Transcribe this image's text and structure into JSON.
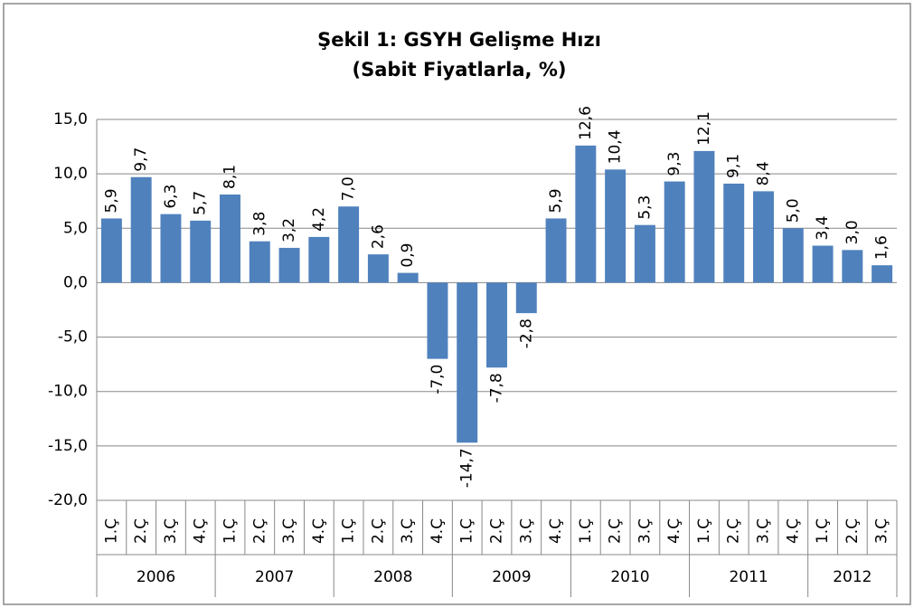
{
  "chart_data": {
    "type": "bar",
    "title": "Şekil 1: GSYH Gelişme Hızı",
    "subtitle": "(Sabit Fiyatlarla, %)",
    "groups": [
      {
        "name": "2006",
        "categories": [
          "1.Ç",
          "2.Ç",
          "3.Ç",
          "4.Ç"
        ]
      },
      {
        "name": "2007",
        "categories": [
          "1.Ç",
          "2.Ç",
          "3.Ç",
          "4.Ç"
        ]
      },
      {
        "name": "2008",
        "categories": [
          "1.Ç",
          "2.Ç",
          "3.Ç",
          "4.Ç"
        ]
      },
      {
        "name": "2009",
        "categories": [
          "1.Ç",
          "2.Ç",
          "3.Ç",
          "4.Ç"
        ]
      },
      {
        "name": "2010",
        "categories": [
          "1.Ç",
          "2.Ç",
          "3.Ç",
          "4.Ç"
        ]
      },
      {
        "name": "2011",
        "categories": [
          "1.Ç",
          "2.Ç",
          "3.Ç",
          "4.Ç"
        ]
      },
      {
        "name": "2012",
        "categories": [
          "1.Ç",
          "2.Ç",
          "3.Ç"
        ]
      }
    ],
    "values": [
      5.9,
      9.7,
      6.3,
      5.7,
      8.1,
      3.8,
      3.2,
      4.2,
      7.0,
      2.6,
      0.9,
      -7.0,
      -14.7,
      -7.8,
      -2.8,
      5.9,
      12.6,
      10.4,
      5.3,
      9.3,
      12.1,
      9.1,
      8.4,
      5.0,
      3.4,
      3.0,
      1.6
    ],
    "value_labels": [
      "5,9",
      "9,7",
      "6,3",
      "5,7",
      "8,1",
      "3,8",
      "3,2",
      "4,2",
      "7,0",
      "2,6",
      "0,9",
      "-7,0",
      "-14,7",
      "-7,8",
      "-2,8",
      "5,9",
      "12,6",
      "10,4",
      "5,3",
      "9,3",
      "12,1",
      "9,1",
      "8,4",
      "5,0",
      "3,4",
      "3,0",
      "1,6"
    ],
    "color": "#4f81bd",
    "ylim": [
      -20,
      15
    ],
    "yticks": [
      {
        "value": -20,
        "label": "-20,0"
      },
      {
        "value": -15,
        "label": "-15,0"
      },
      {
        "value": -10,
        "label": "-10,0"
      },
      {
        "value": -5,
        "label": "-5,0"
      },
      {
        "value": 0,
        "label": "0,0"
      },
      {
        "value": 5,
        "label": "5,0"
      },
      {
        "value": 10,
        "label": "10,0"
      },
      {
        "value": 15,
        "label": "15,0"
      }
    ],
    "grid": true
  }
}
